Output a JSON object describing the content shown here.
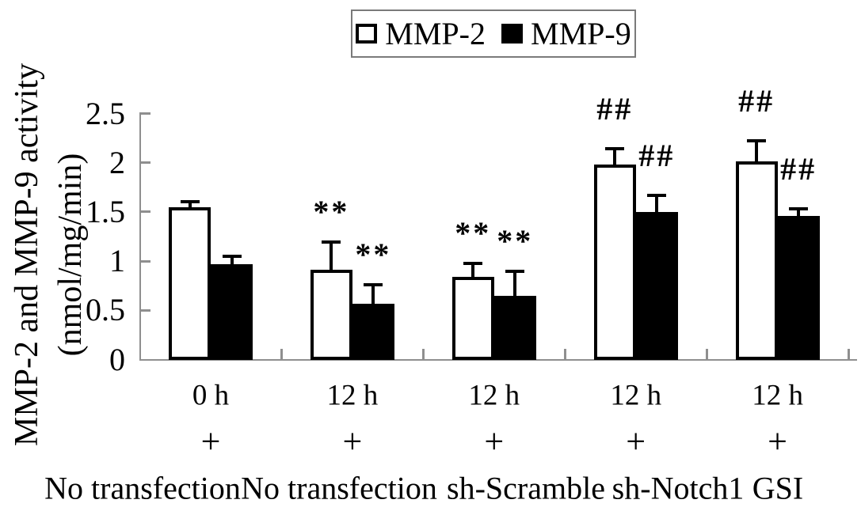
{
  "y_axis": {
    "label_line1": "MMP-2 and MMP-9 activity",
    "label_line2": "(nmol/mg/min)",
    "ticks": [
      "0",
      "0.5",
      "1",
      "1.5",
      "2",
      "2.5"
    ]
  },
  "chart_data": {
    "type": "bar",
    "title": "",
    "xlabel": "",
    "ylabel": "MMP-2 and MMP-9 activity (nmol/mg/min)",
    "ylim": [
      0,
      2.5
    ],
    "ytick_values": [
      0,
      0.5,
      1,
      1.5,
      2,
      2.5
    ],
    "grid": false,
    "legend_position": "top",
    "categories": [
      {
        "time": "0 h",
        "condition": "+",
        "treatment": "No transfection"
      },
      {
        "time": "12 h",
        "condition": "+",
        "treatment": "No transfection"
      },
      {
        "time": "12 h",
        "condition": "+",
        "treatment": "sh-Scramble"
      },
      {
        "time": "12 h",
        "condition": "+",
        "treatment": "sh-Notch1"
      },
      {
        "time": "12 h",
        "condition": "+",
        "treatment": "GSI"
      }
    ],
    "series": [
      {
        "name": "MMP-2",
        "fill": "#ffffff",
        "outline": "#000000",
        "values": [
          1.55,
          0.91,
          0.84,
          1.98,
          2.01
        ],
        "errors": [
          0.05,
          0.28,
          0.14,
          0.16,
          0.21
        ],
        "annotations": [
          "",
          "**",
          "**",
          "##",
          "##"
        ]
      },
      {
        "name": "MMP-9",
        "fill": "#000000",
        "outline": "#000000",
        "values": [
          0.97,
          0.57,
          0.65,
          1.5,
          1.46
        ],
        "errors": [
          0.08,
          0.19,
          0.25,
          0.17,
          0.07
        ],
        "annotations": [
          "",
          "**",
          "**",
          "##",
          "##"
        ]
      }
    ],
    "colors": {
      "axis_line": "#8f8f8f",
      "bar_outline": "#000000",
      "text": "#000000",
      "background": "#ffffff"
    }
  }
}
